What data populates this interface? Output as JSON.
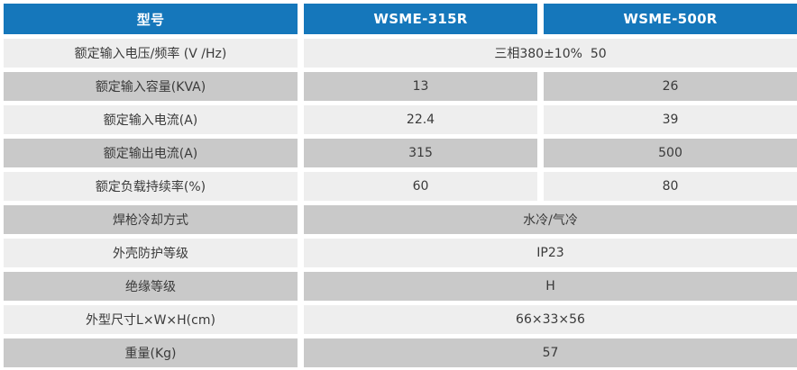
{
  "colors": {
    "header_bg": "#1577bb",
    "header_text": "#ffffff",
    "row_light": "#eeeeee",
    "row_dark": "#c9c9c9",
    "body_text": "#3a3a3a"
  },
  "chart_data": {
    "type": "table",
    "columns": [
      "型号",
      "WSME-315R",
      "WSME-500R"
    ],
    "rows": [
      {
        "label": "额定输入电压/频率 (V /Hz)",
        "span": true,
        "value": "三相380±10%  50"
      },
      {
        "label": "额定输入容量(KVA)",
        "span": false,
        "v1": "13",
        "v2": "26"
      },
      {
        "label": "额定输入电流(A)",
        "span": false,
        "v1": "22.4",
        "v2": "39"
      },
      {
        "label": "额定输出电流(A)",
        "span": false,
        "v1": "315",
        "v2": "500"
      },
      {
        "label": "额定负载持续率(%)",
        "span": false,
        "v1": "60",
        "v2": "80"
      },
      {
        "label": "焊枪冷却方式",
        "span": true,
        "value": "水冷/气冷"
      },
      {
        "label": "外壳防护等级",
        "span": true,
        "value": "IP23"
      },
      {
        "label": "绝缘等级",
        "span": true,
        "value": "H"
      },
      {
        "label": "外型尺寸L×W×H(cm)",
        "span": true,
        "value": "66×33×56"
      },
      {
        "label": "重量(Kg)",
        "span": true,
        "value": "57"
      }
    ]
  }
}
